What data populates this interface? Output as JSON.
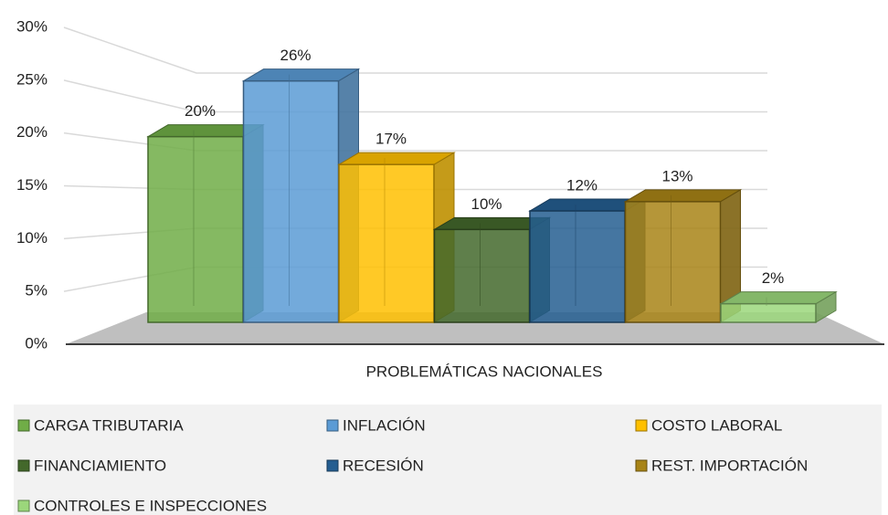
{
  "chart_data": {
    "type": "bar3d",
    "xlabel": "PROBLEMÁTICAS NACIONALES",
    "categories": [
      "PROBLEMÁTICAS NACIONALES"
    ],
    "ylim": [
      0,
      30
    ],
    "yticks": [
      {
        "value": 0,
        "label": "0%"
      },
      {
        "value": 5,
        "label": "5%"
      },
      {
        "value": 10,
        "label": "10%"
      },
      {
        "value": 15,
        "label": "15%"
      },
      {
        "value": 20,
        "label": "20%"
      },
      {
        "value": 25,
        "label": "25%"
      },
      {
        "value": 30,
        "label": "30%"
      }
    ],
    "grid": true,
    "legend": "bottom",
    "series": [
      {
        "name": "CARGA TRIBUTARIA",
        "color": "#70ad47",
        "values": [
          20
        ],
        "value_labels": [
          "20%"
        ]
      },
      {
        "name": "INFLACIÓN",
        "color": "#5b9bd5",
        "values": [
          26
        ],
        "value_labels": [
          "26%"
        ]
      },
      {
        "name": "COSTO LABORAL",
        "color": "#ffc000",
        "values": [
          17
        ],
        "value_labels": [
          "17%"
        ]
      },
      {
        "name": "FINANCIAMIENTO",
        "color": "#43682b",
        "values": [
          10
        ],
        "value_labels": [
          "10%"
        ]
      },
      {
        "name": "RECESIÓN",
        "color": "#255e91",
        "values": [
          12
        ],
        "value_labels": [
          "12%"
        ]
      },
      {
        "name": "REST. IMPORTACIÓN",
        "color": "#a88416",
        "values": [
          13
        ],
        "value_labels": [
          "13%"
        ]
      },
      {
        "name": "CONTROLES E INSPECCIONES",
        "color": "#9bd77b",
        "values": [
          2
        ],
        "value_labels": [
          "2%"
        ]
      }
    ]
  }
}
